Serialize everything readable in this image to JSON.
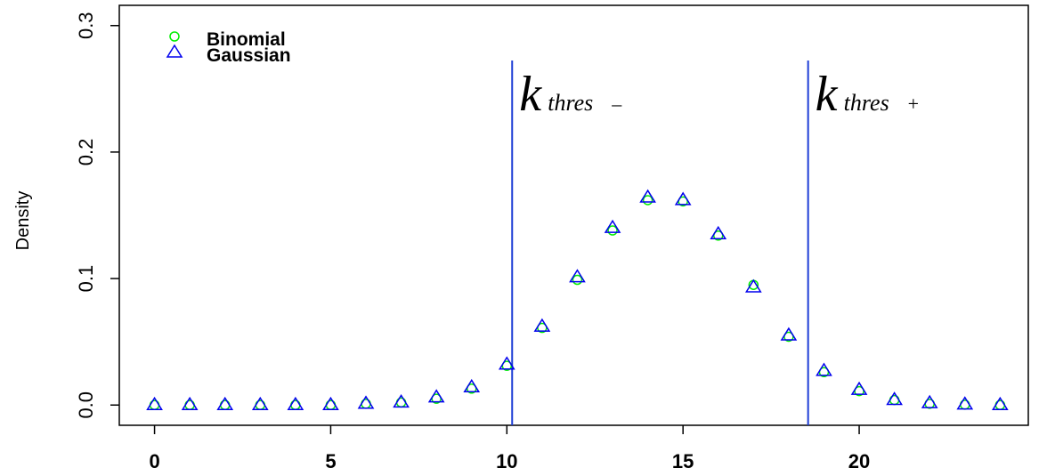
{
  "chart_data": {
    "type": "scatter",
    "title": "",
    "xlabel": "",
    "ylabel": "Density",
    "xlim": [
      -1,
      24.8
    ],
    "ylim": [
      -0.016,
      0.316
    ],
    "x_ticks": [
      0,
      5,
      10,
      15,
      20
    ],
    "x_tick_labels": [
      "0",
      "5",
      "10",
      "15",
      "20"
    ],
    "y_ticks": [
      0.0,
      0.1,
      0.2,
      0.3
    ],
    "y_tick_labels": [
      "0.0",
      "0.1",
      "0.2",
      "0.3"
    ],
    "legend_position": "top-left",
    "grid": false,
    "series": [
      {
        "name": "Binomial",
        "marker": "circle",
        "color": "#00ee00",
        "x": [
          0,
          1,
          2,
          3,
          4,
          5,
          6,
          7,
          8,
          9,
          10,
          11,
          12,
          13,
          14,
          15,
          16,
          17,
          18,
          19,
          20,
          21,
          22,
          23,
          24
        ],
        "y": [
          0,
          0,
          0,
          0,
          0,
          0,
          0.001,
          0.002,
          0.005,
          0.013,
          0.031,
          0.061,
          0.099,
          0.138,
          0.162,
          0.161,
          0.134,
          0.095,
          0.054,
          0.026,
          0.011,
          0.004,
          0.001,
          0.0003,
          0
        ]
      },
      {
        "name": "Gaussian",
        "marker": "triangle",
        "color": "#0000ee",
        "x": [
          0,
          1,
          2,
          3,
          4,
          5,
          6,
          7,
          8,
          9,
          10,
          11,
          12,
          13,
          14,
          15,
          16,
          17,
          18,
          19,
          20,
          21,
          22,
          23,
          24
        ],
        "y": [
          0,
          0,
          0,
          0,
          0,
          0,
          0.001,
          0.002,
          0.006,
          0.014,
          0.032,
          0.062,
          0.101,
          0.14,
          0.164,
          0.162,
          0.135,
          0.093,
          0.055,
          0.027,
          0.012,
          0.004,
          0.0015,
          0.0004,
          0
        ]
      }
    ],
    "annotations": [
      {
        "kind": "vline",
        "x": 10.15,
        "color": "#1f3fd6",
        "label_main": "k",
        "label_sub": "thres",
        "label_sign": "–"
      },
      {
        "kind": "vline",
        "x": 18.55,
        "color": "#1f3fd6",
        "label_main": "k",
        "label_sub": "thres",
        "label_sign": "+"
      }
    ]
  }
}
